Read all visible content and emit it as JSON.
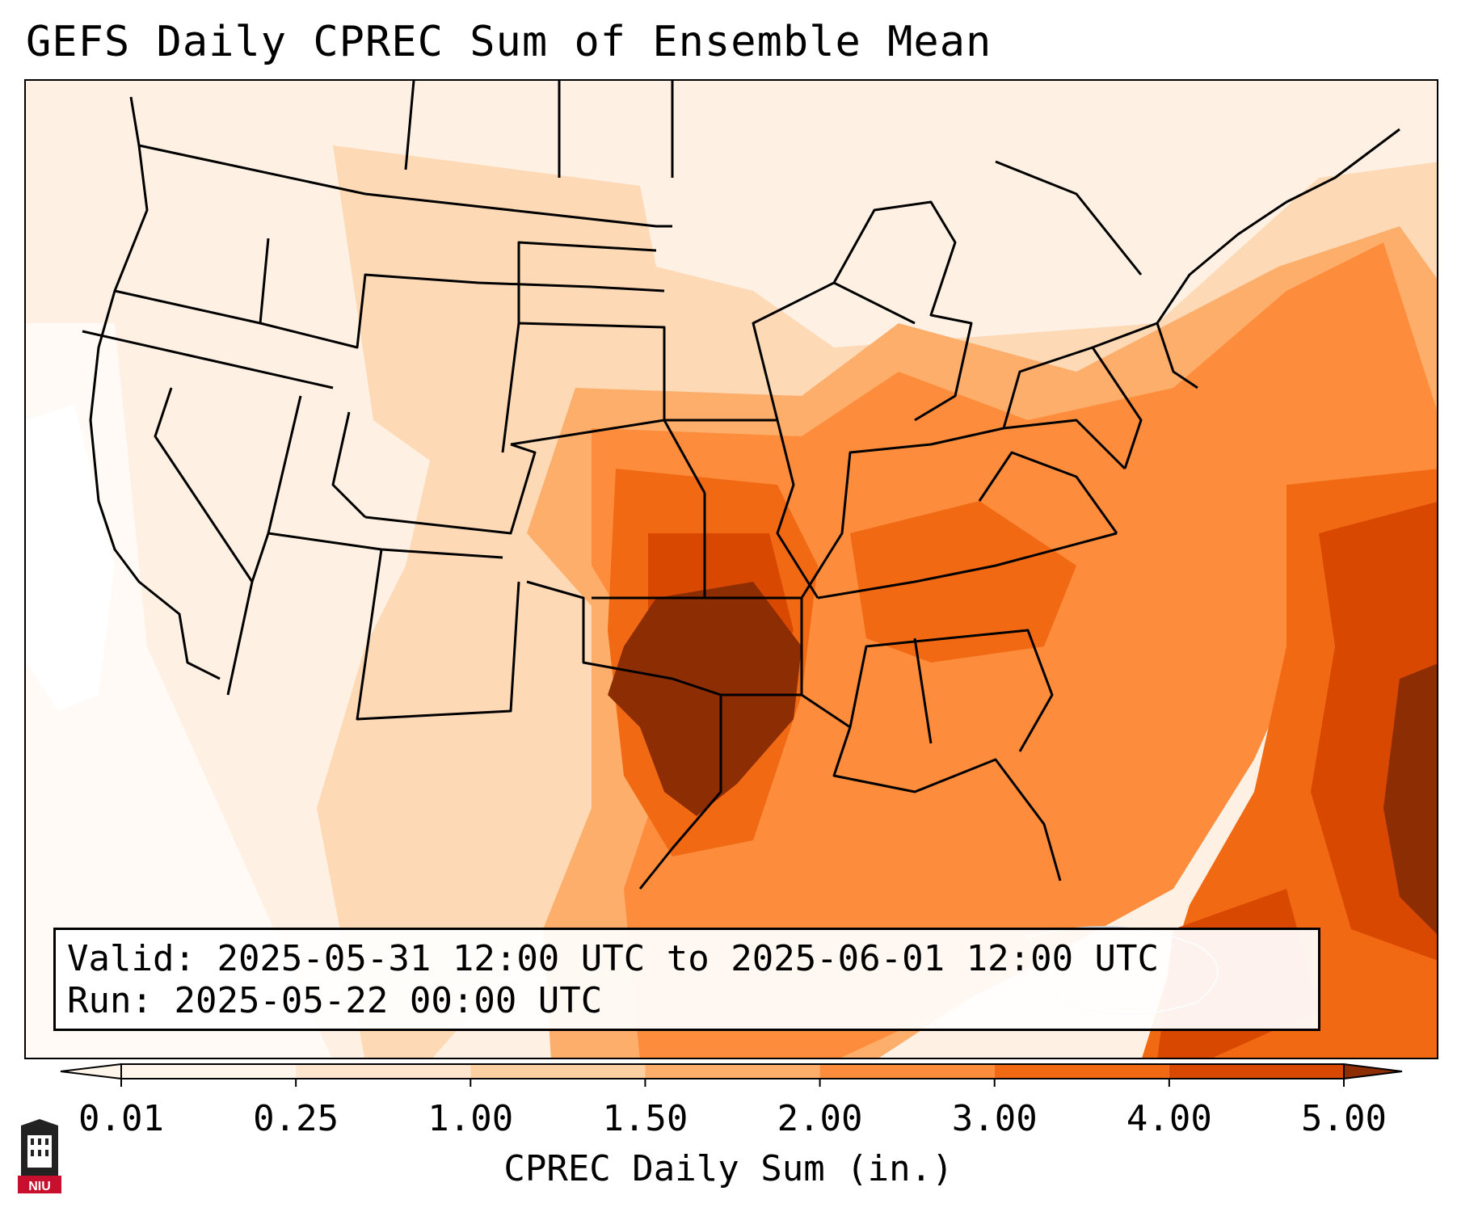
{
  "title": "GEFS Daily CPREC Sum of Ensemble Mean",
  "info": {
    "valid_label": "Valid:",
    "valid_value": "2025-05-31 12:00 UTC to 2025-06-01 12:00 UTC",
    "run_label": "Run:",
    "run_value": "2025-05-22 00:00 UTC"
  },
  "colorbar": {
    "title": "CPREC Daily Sum (in.)",
    "ticks": [
      "0.01",
      "0.25",
      "1.00",
      "1.50",
      "2.00",
      "3.00",
      "4.00",
      "5.00"
    ],
    "colors": [
      "#fff5eb",
      "#fee6ce",
      "#fdd0a2",
      "#fdae6b",
      "#fd8d3c",
      "#f16913",
      "#d94801",
      "#8c2d04"
    ]
  },
  "logo": {
    "text": "NIU"
  }
}
